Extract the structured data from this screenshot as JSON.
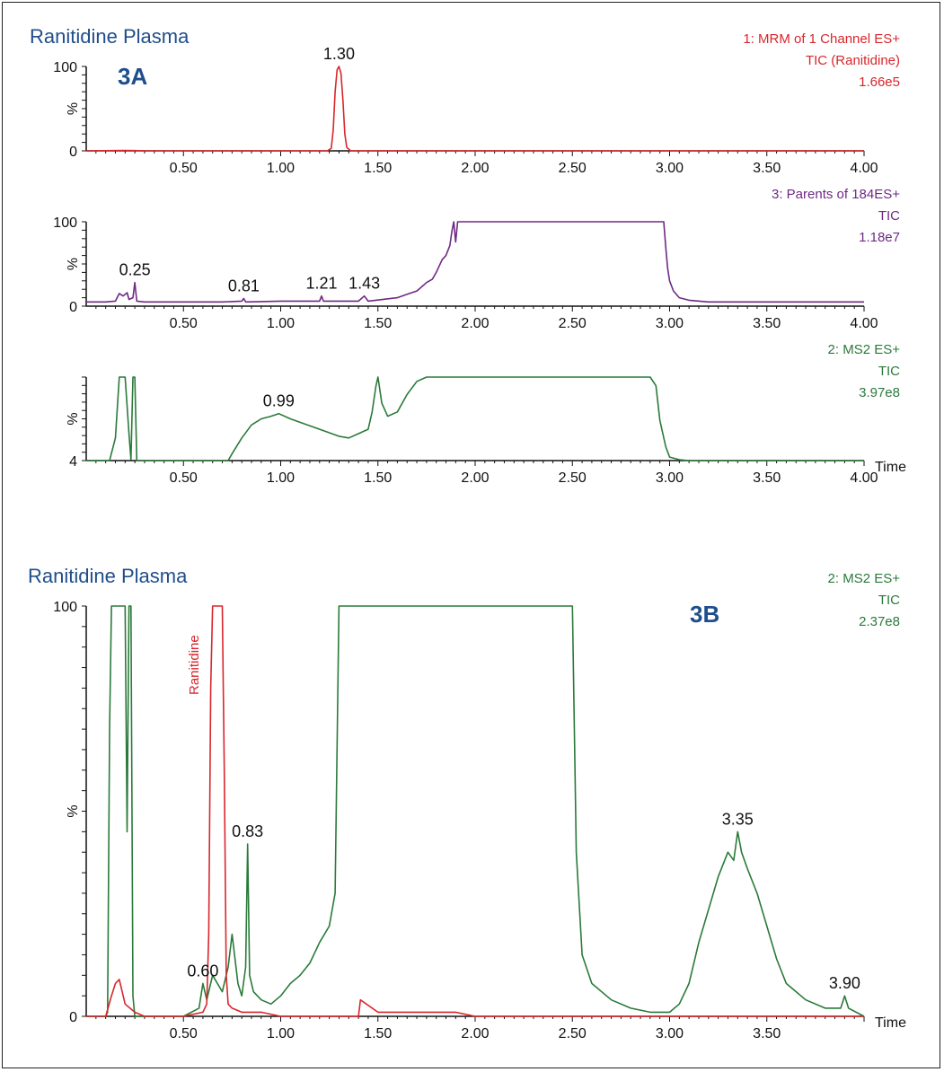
{
  "colors": {
    "red": "#d8262c",
    "purple": "#6e2a84",
    "green": "#2a7a3a",
    "title_blue": "#1f4e8c",
    "axis": "#111111"
  },
  "figure": {
    "panel_a_title": "Ranitidine Plasma",
    "panel_a_tag": "3A",
    "panel_b_title": "Ranitidine Plasma",
    "panel_b_tag": "3B"
  },
  "chart_data": [
    {
      "type": "line",
      "id": "a1",
      "title": "Ranitidine Plasma",
      "trace_label": [
        "1: MRM of 1 Channel ES+",
        "TIC (Ranitidine)",
        "1.66e5"
      ],
      "color": "red",
      "xlim": [
        0.0,
        4.0
      ],
      "ylim": [
        0,
        100
      ],
      "y_tick_labels": [
        "0",
        "100"
      ],
      "ylabel": "%",
      "xlabel": "",
      "x_ticks": [
        "0.50",
        "1.00",
        "1.50",
        "2.00",
        "2.50",
        "3.00",
        "3.50",
        "4.00"
      ],
      "peaks": [
        {
          "x": 1.3,
          "label": "1.30"
        }
      ],
      "x": [
        0.0,
        0.2,
        0.25,
        0.3,
        0.5,
        1.0,
        1.2,
        1.24,
        1.26,
        1.27,
        1.28,
        1.29,
        1.3,
        1.31,
        1.32,
        1.33,
        1.34,
        1.36,
        1.5,
        2.0,
        3.0,
        4.0
      ],
      "y": [
        0,
        0.5,
        0.3,
        0,
        0,
        0,
        0,
        0,
        3,
        25,
        70,
        96,
        100,
        92,
        60,
        20,
        4,
        0,
        0,
        0,
        0,
        0
      ]
    },
    {
      "type": "line",
      "id": "a2",
      "trace_label": [
        "3: Parents of 184ES+",
        "TIC",
        "1.18e7"
      ],
      "color": "purple",
      "xlim": [
        0.0,
        4.0
      ],
      "ylim": [
        0,
        100
      ],
      "y_tick_labels": [
        "0",
        "100"
      ],
      "ylabel": "%",
      "xlabel": "",
      "x_ticks": [
        "0.50",
        "1.00",
        "1.50",
        "2.00",
        "2.50",
        "3.00",
        "3.50",
        "4.00"
      ],
      "peaks": [
        {
          "x": 0.25,
          "label": "0.25"
        },
        {
          "x": 0.81,
          "label": "0.81"
        },
        {
          "x": 1.21,
          "label": "1.21"
        },
        {
          "x": 1.43,
          "label": "1.43"
        }
      ],
      "x": [
        0.0,
        0.1,
        0.15,
        0.17,
        0.19,
        0.21,
        0.22,
        0.24,
        0.25,
        0.26,
        0.3,
        0.5,
        0.7,
        0.8,
        0.81,
        0.82,
        1.0,
        1.2,
        1.21,
        1.22,
        1.4,
        1.43,
        1.45,
        1.6,
        1.65,
        1.7,
        1.75,
        1.78,
        1.8,
        1.83,
        1.85,
        1.87,
        1.88,
        1.89,
        1.9,
        1.91,
        2.5,
        2.9,
        2.97,
        2.98,
        2.99,
        3.0,
        3.02,
        3.05,
        3.1,
        3.2,
        4.0
      ],
      "y": [
        5,
        5,
        6,
        15,
        12,
        16,
        8,
        10,
        28,
        6,
        5,
        5,
        5,
        6,
        9,
        5,
        6,
        6,
        12,
        6,
        6,
        12,
        6,
        10,
        14,
        18,
        28,
        32,
        40,
        55,
        60,
        72,
        88,
        100,
        76,
        100,
        100,
        100,
        100,
        70,
        45,
        30,
        18,
        10,
        7,
        5,
        5
      ]
    },
    {
      "type": "line",
      "id": "a3",
      "trace_label": [
        "2: MS2 ES+",
        "TIC",
        "3.97e8"
      ],
      "color": "green",
      "xlim": [
        0.0,
        4.0
      ],
      "ylim": [
        4,
        100
      ],
      "y_tick_labels": [
        "4"
      ],
      "ylabel": "%",
      "xlabel": "Time",
      "x_ticks": [
        "0.50",
        "1.00",
        "1.50",
        "2.00",
        "2.50",
        "3.00",
        "3.50",
        "4.00"
      ],
      "peaks": [
        {
          "x": 0.99,
          "label": "0.99"
        }
      ],
      "x": [
        0.0,
        0.1,
        0.12,
        0.15,
        0.17,
        0.2,
        0.22,
        0.23,
        0.24,
        0.25,
        0.26,
        0.28,
        0.5,
        0.73,
        0.75,
        0.8,
        0.85,
        0.9,
        0.95,
        0.99,
        1.05,
        1.1,
        1.2,
        1.3,
        1.35,
        1.4,
        1.45,
        1.47,
        1.49,
        1.5,
        1.52,
        1.55,
        1.6,
        1.65,
        1.7,
        1.75,
        1.8,
        2.5,
        2.9,
        2.93,
        2.95,
        2.98,
        3.0,
        3.05,
        3.1,
        4.0
      ],
      "y": [
        4,
        4,
        4,
        30,
        100,
        100,
        35,
        5,
        100,
        100,
        4,
        4,
        4,
        4,
        12,
        30,
        45,
        52,
        55,
        58,
        52,
        48,
        40,
        32,
        30,
        35,
        40,
        60,
        90,
        100,
        70,
        55,
        60,
        80,
        95,
        100,
        100,
        100,
        100,
        90,
        50,
        20,
        8,
        5,
        4,
        4
      ]
    },
    {
      "type": "line",
      "id": "b",
      "title": "Ranitidine Plasma",
      "trace_label": [
        "2: MS2 ES+",
        "TIC",
        "2.37e8"
      ],
      "xlim": [
        0.0,
        4.0
      ],
      "ylim": [
        0,
        100
      ],
      "y_tick_labels": [
        "0",
        "100"
      ],
      "ylabel": "%",
      "xlabel": "Time",
      "x_ticks": [
        "0.50",
        "1.00",
        "1.50",
        "2.00",
        "2.50",
        "3.00",
        "3.50"
      ],
      "annotation": "Ranitidine",
      "peaks": [
        {
          "x": 0.6,
          "label": "0.60"
        },
        {
          "x": 0.83,
          "label": "0.83"
        },
        {
          "x": 3.35,
          "label": "3.35"
        },
        {
          "x": 3.9,
          "label": "3.90"
        }
      ],
      "series": [
        {
          "color": "green",
          "x": [
            0.0,
            0.1,
            0.11,
            0.12,
            0.13,
            0.2,
            0.21,
            0.22,
            0.23,
            0.24,
            0.25,
            0.3,
            0.5,
            0.58,
            0.6,
            0.62,
            0.65,
            0.7,
            0.73,
            0.75,
            0.78,
            0.8,
            0.82,
            0.83,
            0.84,
            0.86,
            0.9,
            0.95,
            1.0,
            1.05,
            1.1,
            1.15,
            1.2,
            1.25,
            1.28,
            1.3,
            1.35,
            2.3,
            2.5,
            2.52,
            2.55,
            2.6,
            2.7,
            2.8,
            2.9,
            3.0,
            3.05,
            3.1,
            3.15,
            3.2,
            3.25,
            3.3,
            3.33,
            3.35,
            3.37,
            3.4,
            3.45,
            3.5,
            3.55,
            3.6,
            3.7,
            3.8,
            3.88,
            3.9,
            3.92,
            4.0
          ],
          "y": [
            0,
            0,
            1,
            70,
            100,
            100,
            45,
            100,
            100,
            5,
            0,
            0,
            0,
            2,
            8,
            4,
            10,
            6,
            12,
            20,
            8,
            5,
            12,
            42,
            10,
            6,
            4,
            3,
            5,
            8,
            10,
            13,
            18,
            22,
            30,
            100,
            100,
            100,
            100,
            40,
            15,
            8,
            4,
            2,
            1,
            1,
            3,
            8,
            18,
            26,
            34,
            40,
            38,
            45,
            40,
            36,
            30,
            22,
            14,
            8,
            4,
            2,
            2,
            5,
            2,
            0
          ]
        },
        {
          "color": "red",
          "x": [
            0.0,
            0.1,
            0.13,
            0.15,
            0.17,
            0.2,
            0.25,
            0.3,
            0.5,
            0.6,
            0.62,
            0.63,
            0.64,
            0.65,
            0.66,
            0.7,
            0.71,
            0.72,
            0.73,
            0.75,
            0.8,
            0.9,
            1.0,
            1.4,
            1.41,
            1.5,
            1.9,
            2.0,
            2.5,
            3.0,
            4.0
          ],
          "y": [
            0,
            0,
            5,
            8,
            9,
            3,
            1,
            0,
            0,
            1,
            3,
            20,
            80,
            100,
            100,
            100,
            60,
            10,
            3,
            2,
            1,
            1,
            0,
            0,
            4,
            1,
            1,
            0,
            0,
            0,
            0
          ]
        }
      ]
    }
  ]
}
